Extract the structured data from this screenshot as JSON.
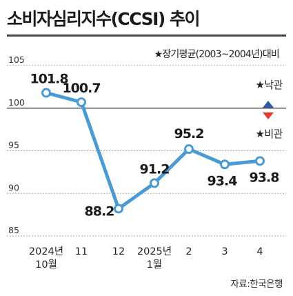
{
  "title": "소비자심리지수(CCSI) 추이",
  "note": "★장기평균(2003~2004년)대비",
  "legend": {
    "optimism": "★낙관",
    "pessimism": "★비관"
  },
  "source": "자료:한국은행",
  "colors": {
    "line": "#4a9ad4",
    "marker_fill": "#ffffff",
    "up_arrow": "#2e5aa6",
    "down_arrow": "#e63a2e",
    "grid": "#aaaaaa"
  },
  "chart_data": {
    "type": "line",
    "categories": [
      "2024년\n10월",
      "11",
      "12",
      "2025년\n1월",
      "2",
      "3",
      "4"
    ],
    "values": [
      101.8,
      100.7,
      88.2,
      91.2,
      95.2,
      93.4,
      93.8
    ],
    "value_labels": [
      "101.8",
      "100.7",
      "88.2",
      "91.2",
      "95.2",
      "93.4",
      "93.8"
    ],
    "yticks": [
      105,
      100,
      95,
      90,
      85
    ],
    "ylim": [
      85,
      105
    ],
    "reference_line": 100,
    "title": "소비자심리지수(CCSI) 추이"
  }
}
